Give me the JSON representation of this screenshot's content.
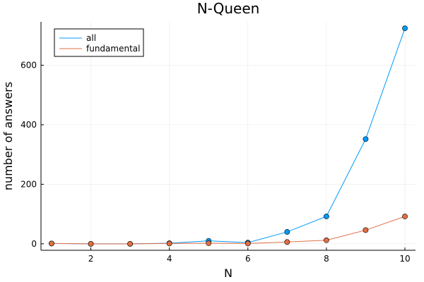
{
  "chart_data": {
    "type": "line",
    "title": "N-Queen",
    "xlabel": "N",
    "ylabel": "number of answers",
    "xlim": [
      0.73,
      10.27
    ],
    "ylim": [
      -21.7,
      745.7
    ],
    "xticks": [
      2,
      4,
      6,
      8,
      10
    ],
    "yticks": [
      0,
      200,
      400,
      600
    ],
    "grid": true,
    "legend_position": "top-left",
    "x": [
      1,
      2,
      3,
      4,
      5,
      6,
      7,
      8,
      9,
      10
    ],
    "series": [
      {
        "name": "all",
        "color": "#009af9",
        "values": [
          1,
          0,
          0,
          2,
          10,
          4,
          40,
          92,
          352,
          724
        ]
      },
      {
        "name": "fundamental",
        "color": "#e26f46",
        "values": [
          1,
          0,
          0,
          1,
          2,
          1,
          6,
          12,
          46,
          92
        ]
      }
    ]
  }
}
